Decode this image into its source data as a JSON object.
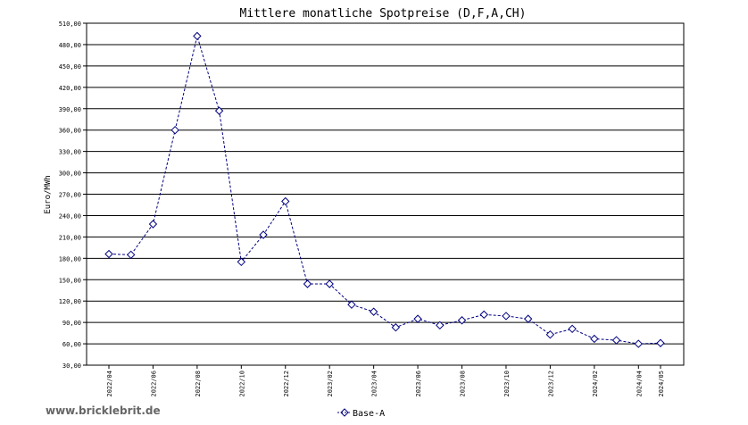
{
  "watermark": "www.bricklebrit.de",
  "chart_data": {
    "type": "line",
    "title": "Mittlere monatliche Spotpreise (D,F,A,CH)",
    "xlabel": "",
    "ylabel": "Euro/MWh",
    "ylim": [
      30,
      510
    ],
    "yticks": [
      "30,00",
      "60,00",
      "90,00",
      "120,00",
      "150,00",
      "180,00",
      "210,00",
      "240,00",
      "270,00",
      "300,00",
      "330,00",
      "360,00",
      "390,00",
      "420,00",
      "450,00",
      "480,00",
      "510,00"
    ],
    "xtick_labels": [
      "2022/04",
      "2022/06",
      "2022/08",
      "2022/10",
      "2022/12",
      "2023/02",
      "2023/04",
      "2023/06",
      "2023/08",
      "2023/10",
      "2023/12",
      "2024/02",
      "2024/04",
      "2024/05"
    ],
    "x": [
      "2022/04",
      "2022/05",
      "2022/06",
      "2022/07",
      "2022/08",
      "2022/09",
      "2022/10",
      "2022/11",
      "2022/12",
      "2023/01",
      "2023/02",
      "2023/03",
      "2023/04",
      "2023/05",
      "2023/06",
      "2023/07",
      "2023/08",
      "2023/09",
      "2023/10",
      "2023/11",
      "2023/12",
      "2024/01",
      "2024/02",
      "2024/03",
      "2024/04",
      "2024/05"
    ],
    "series": [
      {
        "name": "Base-A",
        "color": "#000080",
        "values": [
          186,
          185,
          228,
          360,
          492,
          387,
          175,
          213,
          260,
          144,
          144,
          115,
          105,
          83,
          95,
          86,
          93,
          101,
          99,
          95,
          73,
          81,
          67,
          65,
          60,
          61
        ]
      }
    ],
    "grid": "horizontal",
    "legend": "bottom-center"
  }
}
